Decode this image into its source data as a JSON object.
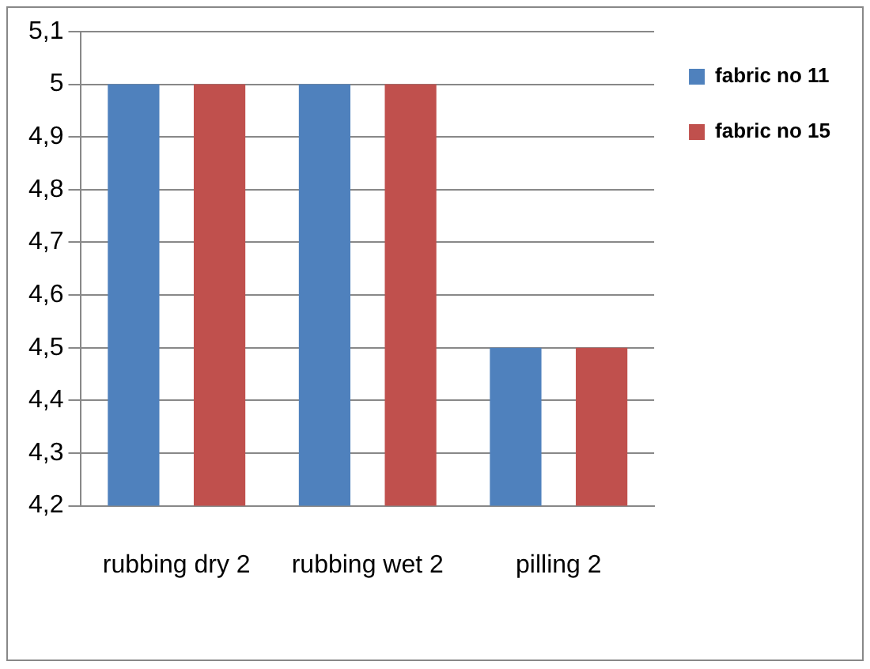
{
  "chart_data": {
    "type": "bar",
    "categories": [
      "rubbing dry 2",
      "rubbing wet 2",
      "pilling 2"
    ],
    "series": [
      {
        "name": "fabric no 11",
        "color": "#4f81bd",
        "values": [
          5,
          5,
          4.5
        ]
      },
      {
        "name": "fabric no 15",
        "color": "#c0504d",
        "values": [
          5,
          5,
          4.5
        ]
      }
    ],
    "ylim": [
      4.2,
      5.1
    ],
    "yticks": [
      {
        "value": 4.2,
        "label": "4,2"
      },
      {
        "value": 4.3,
        "label": "4,3"
      },
      {
        "value": 4.4,
        "label": "4,4"
      },
      {
        "value": 4.5,
        "label": "4,5"
      },
      {
        "value": 4.6,
        "label": "4,6"
      },
      {
        "value": 4.7,
        "label": "4,7"
      },
      {
        "value": 4.8,
        "label": "4,8"
      },
      {
        "value": 4.9,
        "label": "4,9"
      },
      5,
      {
        "value": 5.1,
        "label": "5,1"
      }
    ],
    "grid": "y",
    "legend": "top right"
  }
}
